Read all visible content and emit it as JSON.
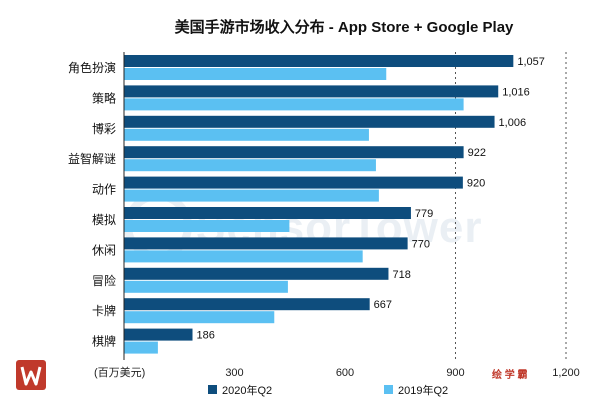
{
  "chart_data": {
    "type": "bar",
    "orientation": "horizontal",
    "title": "美国手游市场收入分布 - App Store + Google Play",
    "xlabel": "(百万美元)",
    "xlim": [
      0,
      1200
    ],
    "xticks": [
      300,
      600,
      900,
      1200
    ],
    "xtick_labels": [
      "300",
      "600",
      "900",
      "1,200"
    ],
    "categories": [
      "角色扮演",
      "策略",
      "博彩",
      "益智解谜",
      "动作",
      "模拟",
      "休闲",
      "冒险",
      "卡牌",
      "棋牌"
    ],
    "series": [
      {
        "name": "2020年Q2",
        "color": "#0e4d7d",
        "values": [
          1057,
          1016,
          1006,
          922,
          920,
          779,
          770,
          718,
          667,
          186
        ],
        "value_labels": [
          "1,057",
          "1,016",
          "1,006",
          "922",
          "920",
          "779",
          "770",
          "718",
          "667",
          "186"
        ]
      },
      {
        "name": "2019年Q2",
        "color": "#5bc0f2",
        "values": [
          712,
          922,
          665,
          684,
          692,
          449,
          648,
          445,
          408,
          92
        ]
      }
    ],
    "grid": "vertical dashed at 900 and 1200",
    "legend": "bottom"
  },
  "watermark": "SensorTower",
  "brand_text": "绘 学 霸"
}
